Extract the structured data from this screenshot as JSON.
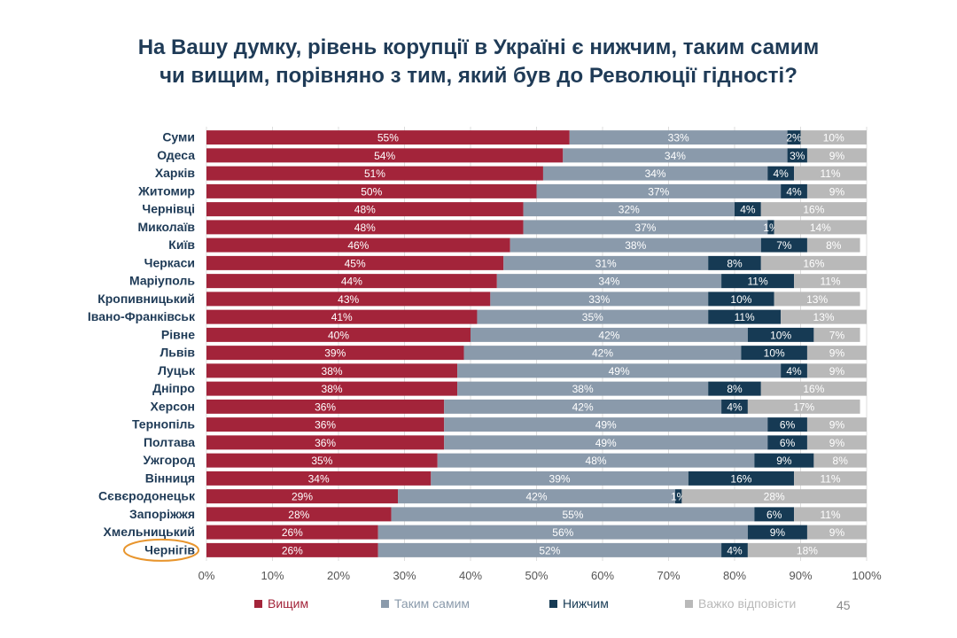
{
  "title_lines": [
    "На Вашу думку, рівень корупції в Україні є нижчим, таким самим",
    "чи вищим, порівняно з тим, який був до Революції гідності?"
  ],
  "page_number": "45",
  "colors": {
    "higher": "#a3243a",
    "same": "#8a9aab",
    "lower": "#163a54",
    "hard": "#b9b9b9",
    "highlight": "#e8952d",
    "title": "#1f3b57"
  },
  "chart_data": {
    "type": "bar",
    "orientation": "horizontal",
    "stacked": true,
    "categories": [
      "Суми",
      "Одеса",
      "Харків",
      "Житомир",
      "Чернівці",
      "Миколаїв",
      "Київ",
      "Черкаси",
      "Маріуполь",
      "Кропивницький",
      "Івано-Франківськ",
      "Рівне",
      "Львів",
      "Луцьк",
      "Дніпро",
      "Херсон",
      "Тернопіль",
      "Полтава",
      "Ужгород",
      "Вінниця",
      "Сєвєродонецьк",
      "Запоріжжя",
      "Хмельницький",
      "Чернігів"
    ],
    "series": [
      {
        "name": "Вищим",
        "color": "#a3243a",
        "values": [
          55,
          54,
          51,
          50,
          48,
          48,
          46,
          45,
          44,
          43,
          41,
          40,
          39,
          38,
          38,
          36,
          36,
          36,
          35,
          34,
          29,
          28,
          26,
          26
        ]
      },
      {
        "name": "Таким самим",
        "color": "#8a9aab",
        "values": [
          33,
          34,
          34,
          37,
          32,
          37,
          38,
          31,
          34,
          33,
          35,
          42,
          42,
          49,
          38,
          42,
          49,
          49,
          48,
          39,
          42,
          55,
          56,
          52
        ]
      },
      {
        "name": "Нижчим",
        "color": "#163a54",
        "values": [
          2,
          3,
          4,
          4,
          4,
          1,
          7,
          8,
          11,
          10,
          11,
          10,
          10,
          4,
          8,
          4,
          6,
          6,
          9,
          16,
          1,
          6,
          9,
          4
        ]
      },
      {
        "name": "Важко відповісти",
        "color": "#b9b9b9",
        "values": [
          10,
          9,
          11,
          9,
          16,
          14,
          8,
          16,
          11,
          13,
          13,
          7,
          9,
          9,
          16,
          17,
          9,
          9,
          8,
          11,
          28,
          11,
          9,
          18
        ]
      }
    ],
    "x_ticks": [
      "0%",
      "10%",
      "20%",
      "30%",
      "40%",
      "50%",
      "60%",
      "70%",
      "80%",
      "90%",
      "100%"
    ],
    "xlim": [
      0,
      100
    ],
    "highlighted_category": "Чернігів",
    "legend_position": "bottom"
  }
}
